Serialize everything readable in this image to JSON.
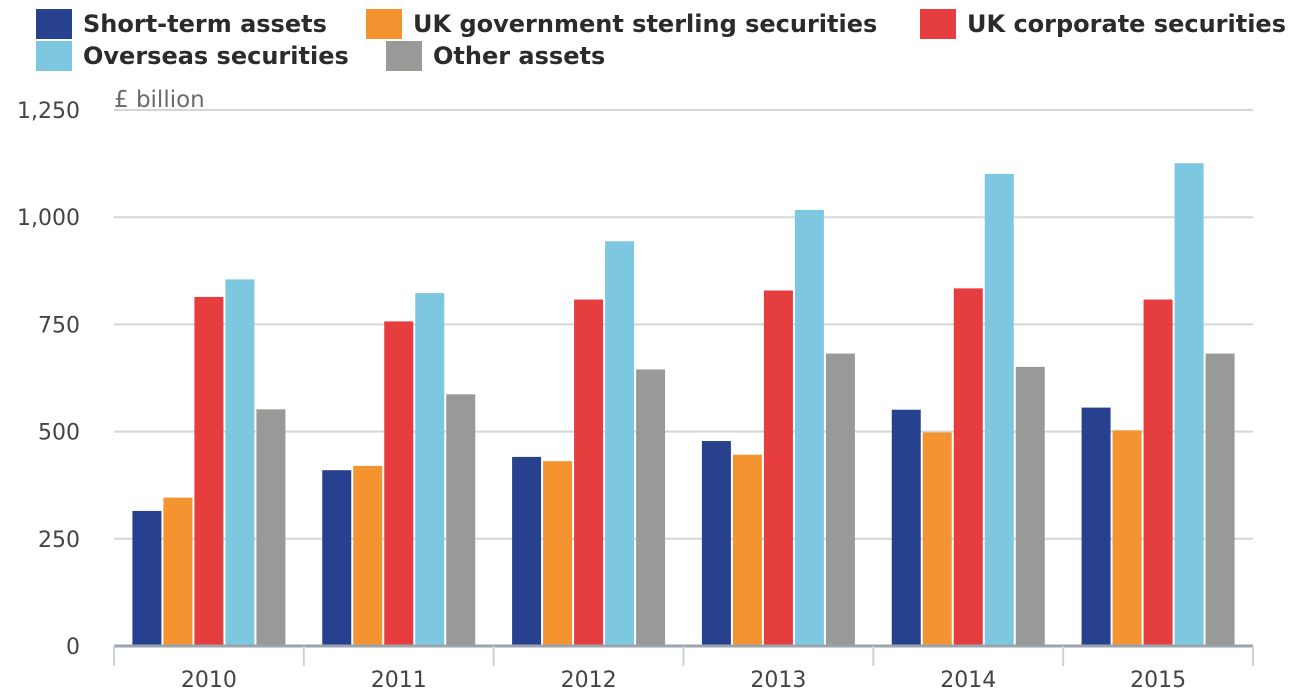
{
  "chart_data": {
    "type": "bar",
    "unit_label": "£ billion",
    "categories": [
      "2010",
      "2011",
      "2012",
      "2013",
      "2014",
      "2015"
    ],
    "series": [
      {
        "name": "Short-term assets",
        "color": "#27418f",
        "values": [
          315,
          410,
          441,
          478,
          551,
          556
        ]
      },
      {
        "name": "UK government sterling securities",
        "color": "#f39431",
        "values": [
          346,
          420,
          431,
          446,
          498,
          503
        ]
      },
      {
        "name": "UK corporate securities",
        "color": "#e63d3e",
        "values": [
          814,
          757,
          808,
          829,
          834,
          808
        ]
      },
      {
        "name": "Overseas securities",
        "color": "#7dc8e0",
        "values": [
          855,
          823,
          944,
          1017,
          1101,
          1126
        ]
      },
      {
        "name": "Other assets",
        "color": "#999998",
        "values": [
          552,
          587,
          645,
          682,
          651,
          682
        ]
      }
    ],
    "ylim": [
      0,
      1250
    ],
    "y_ticks": [
      0,
      250,
      500,
      750,
      1000,
      1250
    ],
    "y_tick_labels": [
      "0",
      "250",
      "500",
      "750",
      "1,000",
      "1,250"
    ],
    "grid": true,
    "legend_position": "top"
  }
}
